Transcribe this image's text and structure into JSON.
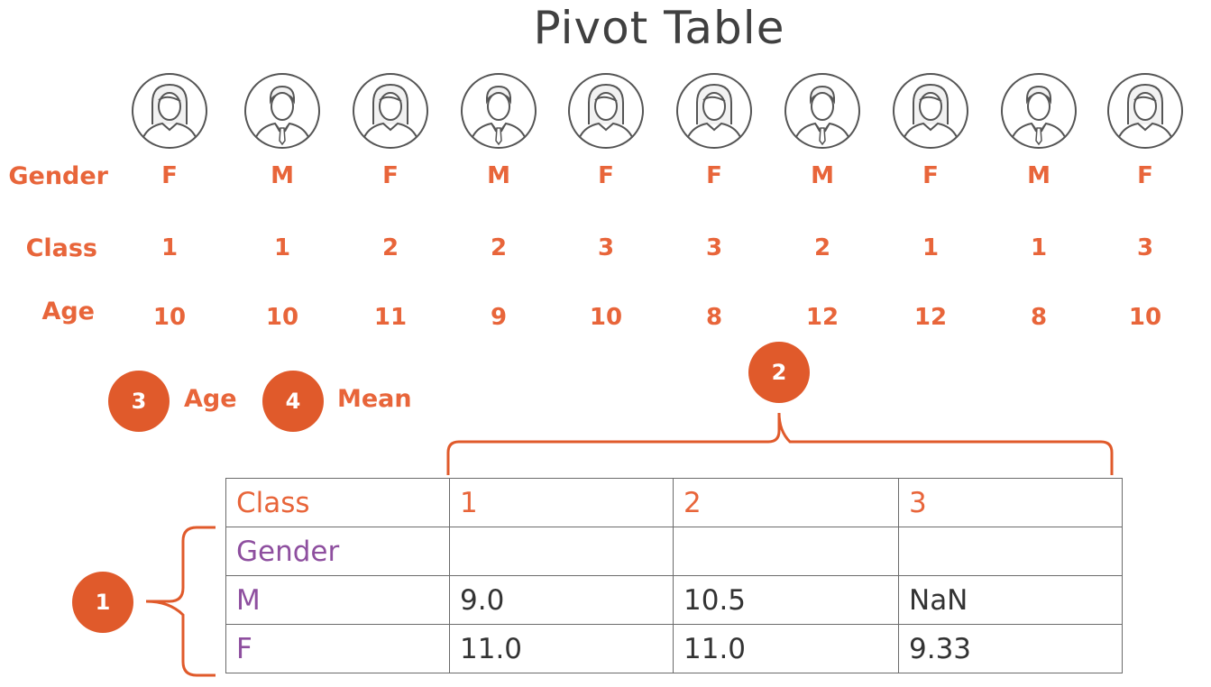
{
  "title": "Pivot Table",
  "row_labels": {
    "gender": "Gender",
    "class": "Class",
    "age": "Age"
  },
  "people": [
    {
      "gender": "F",
      "class": "1",
      "age": "10",
      "avatar": "female-avatar-icon"
    },
    {
      "gender": "M",
      "class": "1",
      "age": "10",
      "avatar": "male-avatar-icon"
    },
    {
      "gender": "F",
      "class": "2",
      "age": "11",
      "avatar": "female-avatar-icon"
    },
    {
      "gender": "M",
      "class": "2",
      "age": "9",
      "avatar": "male-avatar-icon"
    },
    {
      "gender": "F",
      "class": "3",
      "age": "10",
      "avatar": "female-avatar-icon"
    },
    {
      "gender": "F",
      "class": "3",
      "age": "8",
      "avatar": "female-avatar-icon"
    },
    {
      "gender": "M",
      "class": "2",
      "age": "12",
      "avatar": "male-avatar-icon"
    },
    {
      "gender": "F",
      "class": "1",
      "age": "12",
      "avatar": "female-avatar-icon"
    },
    {
      "gender": "M",
      "class": "1",
      "age": "8",
      "avatar": "male-avatar-icon"
    },
    {
      "gender": "F",
      "class": "3",
      "age": "10",
      "avatar": "female-avatar-icon"
    }
  ],
  "steps": [
    {
      "number": "1"
    },
    {
      "number": "2"
    },
    {
      "number": "3",
      "label": "Age"
    },
    {
      "number": "4",
      "label": "Mean"
    }
  ],
  "pivot": {
    "columns_header": "Class",
    "rows_header": "Gender",
    "columns": [
      "1",
      "2",
      "3"
    ],
    "rows": [
      {
        "label": "M",
        "values": [
          "9.0",
          "10.5",
          "NaN"
        ]
      },
      {
        "label": "F",
        "values": [
          "11.0",
          "11.0",
          "9.33"
        ]
      }
    ]
  },
  "colors": {
    "accent": "#e8653a",
    "badge": "#e05a2b",
    "row_index": "#8e4f9f",
    "text": "#333333",
    "title": "#404040"
  }
}
